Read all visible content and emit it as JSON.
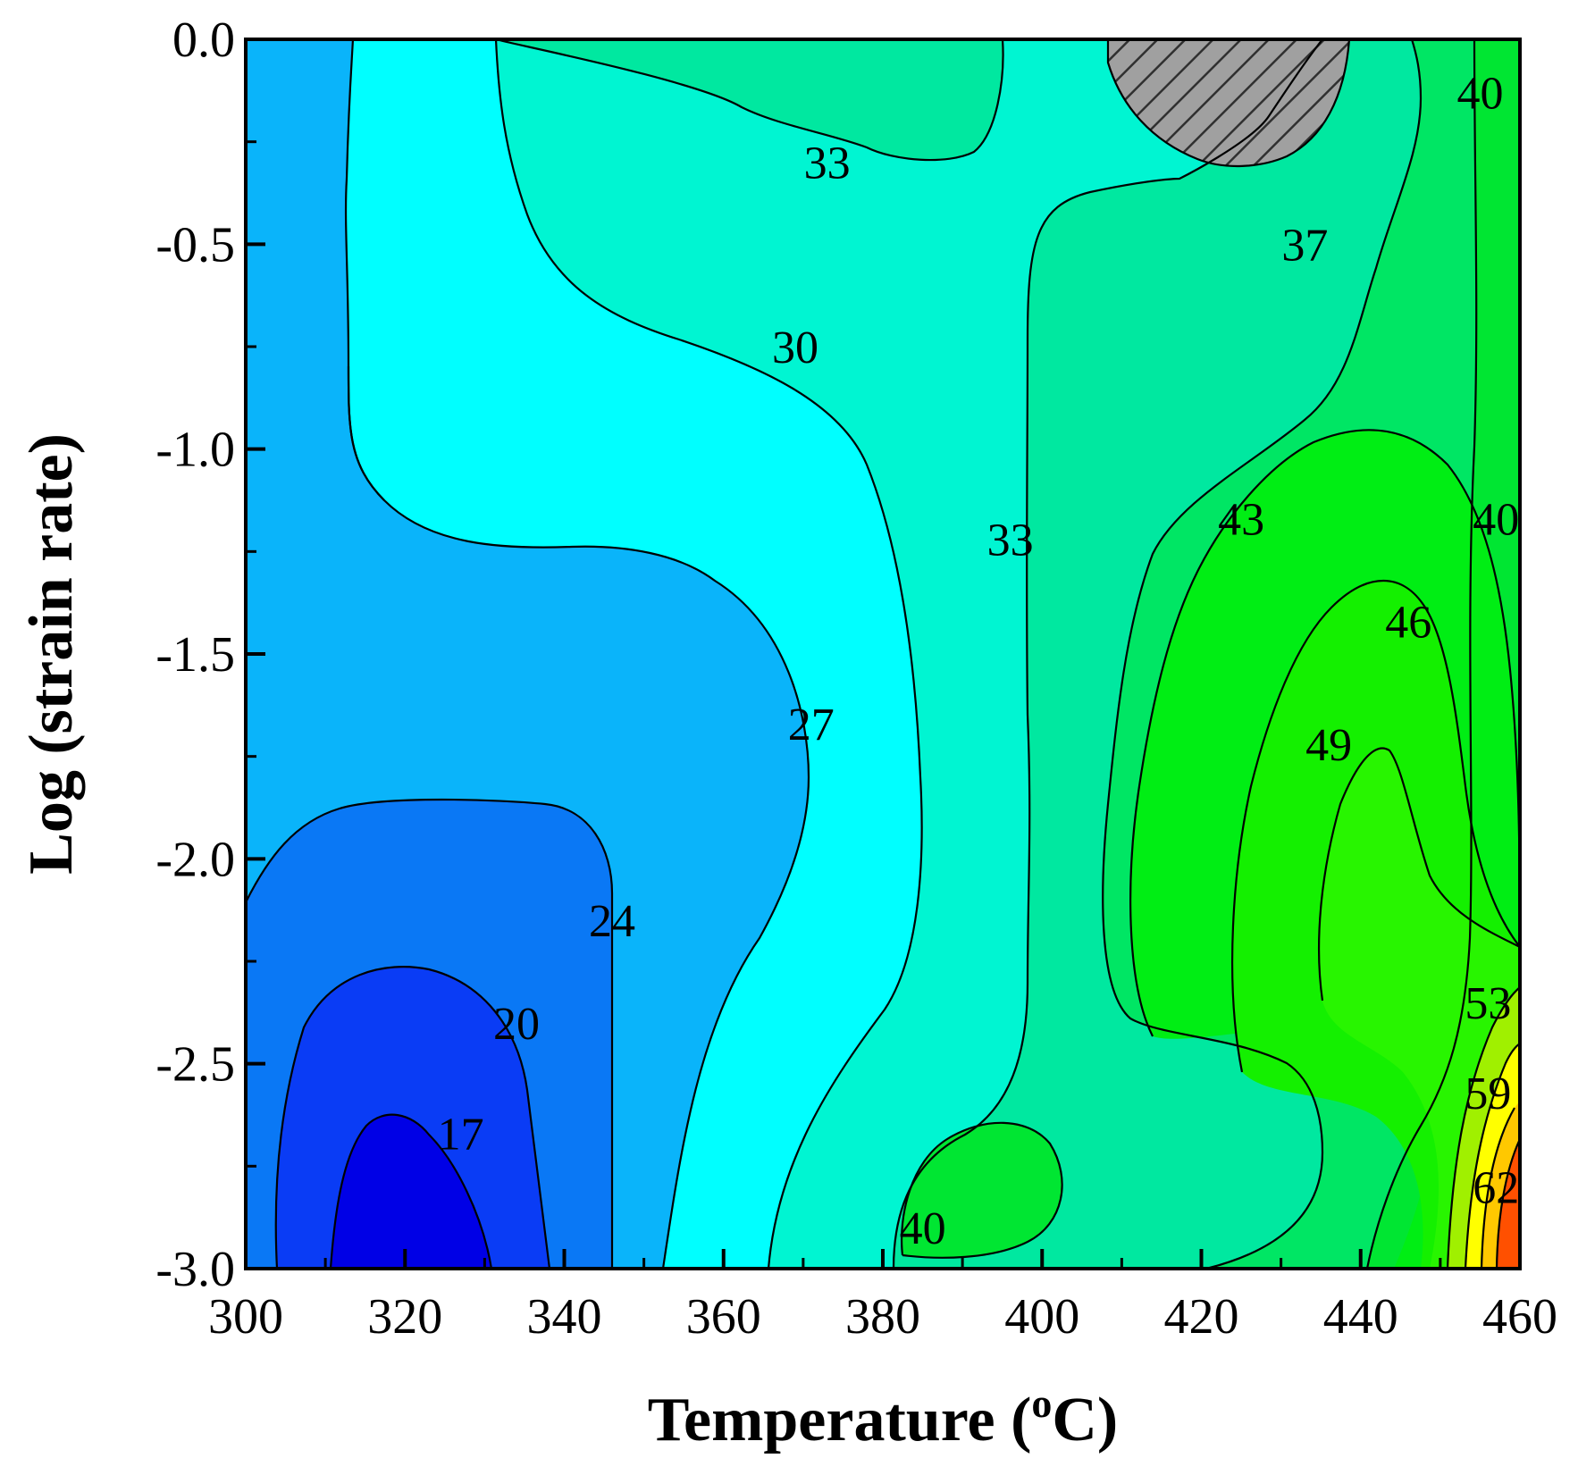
{
  "chart_data": {
    "type": "contour",
    "xlabel": "Temperature (",
    "xlabel_superscript": "o",
    "xlabel_unit": "C)",
    "ylabel": "Log (strain rate)",
    "xlim": [
      300,
      460
    ],
    "ylim": [
      -3.0,
      0.0
    ],
    "x_ticks": [
      300,
      320,
      340,
      360,
      380,
      400,
      420,
      440,
      460
    ],
    "x_tick_labels": [
      "300",
      "320",
      "340",
      "360",
      "380",
      "400",
      "420",
      "440",
      "460"
    ],
    "y_ticks": [
      0.0,
      -0.5,
      -1.0,
      -1.5,
      -2.0,
      -2.5,
      -3.0
    ],
    "y_tick_labels": [
      "0.0",
      "-0.5",
      "-1.0",
      "-1.5",
      "-2.0",
      "-2.5",
      "-3.0"
    ],
    "grid": false,
    "z_unit": "",
    "fill_colors": {
      "lt17": "#0000e6",
      "17-20": "#0a3cf5",
      "20-24": "#0a78f5",
      "24-27": "#0ab4fa",
      "27-30": "#00ffff",
      "30-33": "#00f5d2",
      "33-37": "#00e8a0",
      "37-40": "#00e664",
      "40-43": "#00e632",
      "43-46": "#00ee14",
      "46-49": "#14f000",
      "49-53": "#28f500",
      "53-56": "#a0f000",
      "56-59": "#ffff00",
      "59-62": "#ffc800",
      "gt62": "#ff5000",
      "unstable_hatch": "#a0a0a0"
    },
    "contour_levels": [
      17,
      20,
      24,
      27,
      30,
      33,
      37,
      40,
      43,
      46,
      49,
      53,
      56,
      59,
      62
    ],
    "contour_labels": [
      {
        "text": "33",
        "x": 373,
        "y": -0.3
      },
      {
        "text": "37",
        "x": 433,
        "y": -0.5
      },
      {
        "text": "40",
        "x": 455,
        "y": -0.13
      },
      {
        "text": "30",
        "x": 369,
        "y": -0.75
      },
      {
        "text": "33",
        "x": 396,
        "y": -1.22
      },
      {
        "text": "43",
        "x": 425,
        "y": -1.17
      },
      {
        "text": "40",
        "x": 457,
        "y": -1.17
      },
      {
        "text": "46",
        "x": 446,
        "y": -1.42
      },
      {
        "text": "27",
        "x": 371,
        "y": -1.67
      },
      {
        "text": "49",
        "x": 436,
        "y": -1.72
      },
      {
        "text": "24",
        "x": 346,
        "y": -2.15
      },
      {
        "text": "20",
        "x": 334,
        "y": -2.4
      },
      {
        "text": "53",
        "x": 456,
        "y": -2.35
      },
      {
        "text": "17",
        "x": 327,
        "y": -2.67
      },
      {
        "text": "59",
        "x": 456,
        "y": -2.57
      },
      {
        "text": "62",
        "x": 457,
        "y": -2.8
      },
      {
        "text": "40",
        "x": 385,
        "y": -2.9
      }
    ]
  }
}
